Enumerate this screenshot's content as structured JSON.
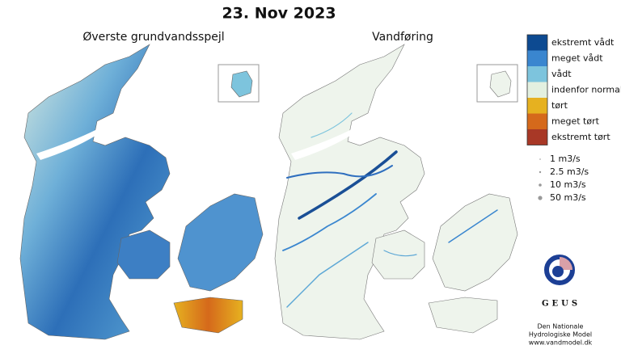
{
  "title": "23. Nov 2023",
  "maps": [
    {
      "title": "Øverste grundvandsspejl"
    },
    {
      "title": "Vandføring"
    }
  ],
  "legend": {
    "classes": [
      {
        "label": "ekstremt vådt",
        "color": "#0d4a91"
      },
      {
        "label": "meget vådt",
        "color": "#3a86cf"
      },
      {
        "label": "vådt",
        "color": "#7dc4dd"
      },
      {
        "label": "indenfor normal",
        "color": "#e3f0e0"
      },
      {
        "label": "tørt",
        "color": "#e6b120"
      },
      {
        "label": "meget tørt",
        "color": "#d5691b"
      },
      {
        "label": "ekstremt tørt",
        "color": "#a83826"
      }
    ],
    "flow_sizes": [
      {
        "label": "1 m3/s"
      },
      {
        "label": "2.5 m3/s"
      },
      {
        "label": "10 m3/s"
      },
      {
        "label": "50 m3/s"
      }
    ]
  },
  "logo": {
    "text": "GEUS"
  },
  "footer": [
    "Den Nationale",
    "Hydrologiske Model",
    "www.vandmodel.dk"
  ]
}
